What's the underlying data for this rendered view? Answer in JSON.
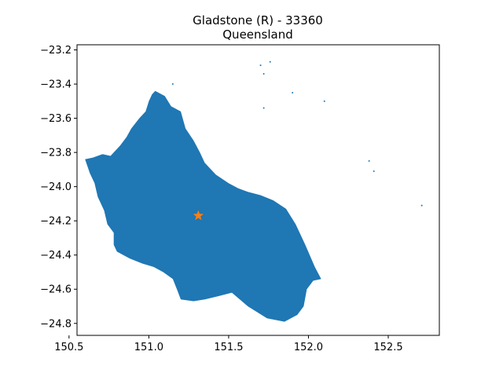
{
  "title": {
    "line1": "Gladstone (R) - 33360",
    "line2": "Queensland"
  },
  "colors": {
    "region_fill": "#1f77b4",
    "marker": "#ff7f0e",
    "axes": "#000000",
    "background": "#ffffff"
  },
  "chart_data": {
    "type": "map",
    "xlim": [
      150.55,
      152.82
    ],
    "ylim": [
      -24.87,
      -23.17
    ],
    "x_ticks": [
      150.5,
      151.0,
      151.5,
      152.0,
      152.5
    ],
    "x_tick_labels": [
      "150.5",
      "151.0",
      "151.5",
      "152.0",
      "152.5"
    ],
    "y_ticks": [
      -23.2,
      -23.4,
      -23.6,
      -23.8,
      -24.0,
      -24.2,
      -24.4,
      -24.6,
      -24.8
    ],
    "y_tick_labels": [
      "−23.2",
      "−23.4",
      "−23.6",
      "−23.8",
      "−24.0",
      "−24.2",
      "−24.4",
      "−24.6",
      "−24.8"
    ],
    "marker": {
      "symbol": "star",
      "x": 151.31,
      "y": -24.17
    },
    "region_outline": [
      [
        150.6,
        -23.84
      ],
      [
        150.65,
        -23.83
      ],
      [
        150.71,
        -23.81
      ],
      [
        150.76,
        -23.82
      ],
      [
        150.82,
        -23.76
      ],
      [
        150.86,
        -23.71
      ],
      [
        150.89,
        -23.66
      ],
      [
        150.94,
        -23.6
      ],
      [
        150.98,
        -23.56
      ],
      [
        151.0,
        -23.5
      ],
      [
        151.02,
        -23.46
      ],
      [
        151.04,
        -23.44
      ],
      [
        151.1,
        -23.47
      ],
      [
        151.14,
        -23.53
      ],
      [
        151.2,
        -23.56
      ],
      [
        151.23,
        -23.66
      ],
      [
        151.28,
        -23.73
      ],
      [
        151.32,
        -23.8
      ],
      [
        151.35,
        -23.86
      ],
      [
        151.42,
        -23.93
      ],
      [
        151.5,
        -23.98
      ],
      [
        151.56,
        -24.01
      ],
      [
        151.62,
        -24.03
      ],
      [
        151.7,
        -24.05
      ],
      [
        151.78,
        -24.08
      ],
      [
        151.86,
        -24.13
      ],
      [
        151.92,
        -24.22
      ],
      [
        151.98,
        -24.34
      ],
      [
        152.04,
        -24.47
      ],
      [
        152.08,
        -24.54
      ],
      [
        152.03,
        -24.55
      ],
      [
        151.99,
        -24.6
      ],
      [
        151.97,
        -24.7
      ],
      [
        151.93,
        -24.75
      ],
      [
        151.85,
        -24.79
      ],
      [
        151.74,
        -24.77
      ],
      [
        151.62,
        -24.7
      ],
      [
        151.52,
        -24.62
      ],
      [
        151.44,
        -24.64
      ],
      [
        151.35,
        -24.66
      ],
      [
        151.28,
        -24.67
      ],
      [
        151.2,
        -24.66
      ],
      [
        151.18,
        -24.61
      ],
      [
        151.15,
        -24.54
      ],
      [
        151.09,
        -24.5
      ],
      [
        151.03,
        -24.47
      ],
      [
        150.96,
        -24.45
      ],
      [
        150.88,
        -24.42
      ],
      [
        150.8,
        -24.38
      ],
      [
        150.78,
        -24.34
      ],
      [
        150.78,
        -24.27
      ],
      [
        150.74,
        -24.22
      ],
      [
        150.72,
        -24.14
      ],
      [
        150.68,
        -24.06
      ],
      [
        150.66,
        -23.98
      ],
      [
        150.63,
        -23.92
      ]
    ],
    "islands": [
      [
        151.7,
        -23.29
      ],
      [
        151.72,
        -23.34
      ],
      [
        151.76,
        -23.27
      ],
      [
        151.9,
        -23.45
      ],
      [
        151.72,
        -23.54
      ],
      [
        152.1,
        -23.5
      ],
      [
        152.38,
        -23.85
      ],
      [
        152.41,
        -23.91
      ],
      [
        152.71,
        -24.11
      ],
      [
        151.15,
        -23.4
      ]
    ]
  }
}
